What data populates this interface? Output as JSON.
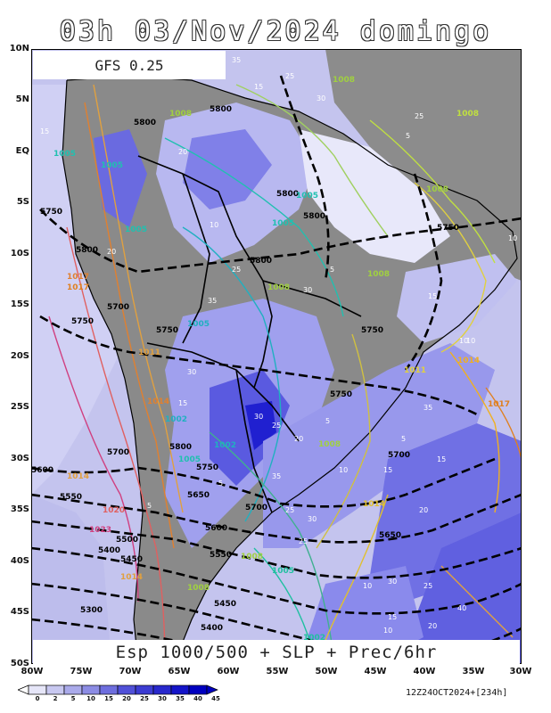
{
  "header": {
    "title": "03h 03/Nov/2024 domingo"
  },
  "model_label": "GFS 0.25",
  "footer_label": "Esp 1000/500 + SLP + Prec/6hr",
  "run_info": "12Z24OCT2024+[234h]",
  "axes": {
    "lat_ticks": [
      "10N",
      "5N",
      "EQ",
      "5S",
      "10S",
      "15S",
      "20S",
      "25S",
      "30S",
      "35S",
      "40S",
      "45S",
      "50S"
    ],
    "lon_ticks": [
      "80W",
      "75W",
      "70W",
      "65W",
      "60W",
      "55W",
      "50W",
      "45W",
      "40W",
      "35W",
      "30W"
    ]
  },
  "colorbar": {
    "labels": [
      "0",
      "2",
      "5",
      "10",
      "15",
      "20",
      "25",
      "30",
      "35",
      "40",
      "45"
    ],
    "colors": [
      "#ffffff",
      "#e6e6f8",
      "#c8c8f0",
      "#aaaaea",
      "#8c8ce4",
      "#6e6ede",
      "#5050d8",
      "#3c3cd2",
      "#2828cc",
      "#1414c8",
      "#0000c0"
    ]
  },
  "colors": {
    "land": "#8c8c8c",
    "ocean_light": "#d8d8f4",
    "precip_mid": "#8c8cf0",
    "precip_heavy": "#2020d8",
    "thickness": "#000000"
  },
  "thickness_labels": [
    "5800",
    "5800",
    "5800",
    "5800",
    "5750",
    "5800",
    "5750",
    "5700",
    "5750",
    "5750",
    "5800",
    "5750",
    "5750",
    "5700",
    "5700",
    "5800",
    "5750",
    "5650",
    "5700",
    "5550",
    "5600",
    "5500",
    "5400",
    "5450",
    "5550",
    "5650",
    "5300",
    "5450",
    "5400",
    "5600"
  ],
  "slp_labels": [
    "1008",
    "1008",
    "1008",
    "1005",
    "1005",
    "1005",
    "1005",
    "1005",
    "1008",
    "1008",
    "1011",
    "1014",
    "1017",
    "1008",
    "1005",
    "1002",
    "1005",
    "1002",
    "1011",
    "1014",
    "1017",
    "1020",
    "1023",
    "1014",
    "1008",
    "1005",
    "1002",
    "1008",
    "1008",
    "1014",
    "1017",
    "1014"
  ],
  "precip_labels": [
    "35",
    "25",
    "15",
    "5",
    "10",
    "30",
    "20",
    "25",
    "10",
    "15",
    "5",
    "35",
    "30",
    "20",
    "10",
    "25",
    "15",
    "5",
    "30",
    "25",
    "15",
    "20",
    "10",
    "35",
    "5",
    "30",
    "15",
    "25",
    "20",
    "10",
    "5",
    "40",
    "35",
    "30",
    "25",
    "20",
    "15",
    "10",
    "5",
    "30",
    "15",
    "25",
    "10"
  ]
}
